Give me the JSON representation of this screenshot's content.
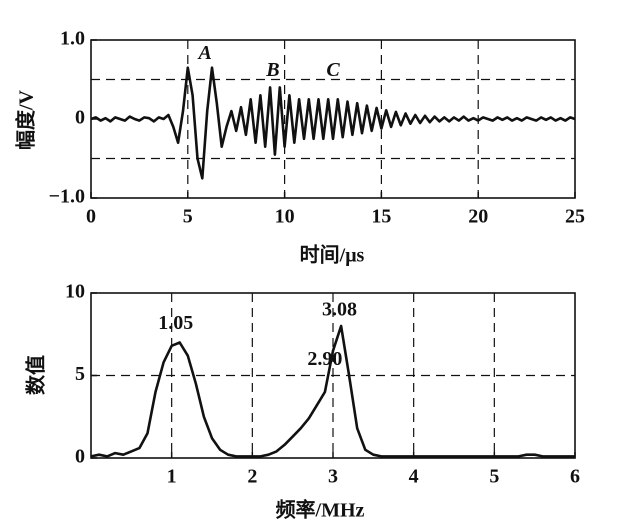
{
  "chart_data": [
    {
      "type": "line",
      "y_label": "幅度/V",
      "x_label": "时间/μs",
      "xlim": [
        0,
        25
      ],
      "xticks": [
        0,
        5,
        10,
        15,
        20,
        25
      ],
      "ylim": [
        -1,
        1
      ],
      "yticks": [
        {
          "value": 1,
          "label": "1.0"
        },
        0,
        {
          "value": -1,
          "label": "−1.0"
        }
      ],
      "grid": true,
      "ygrid": [
        -0.5,
        0.5
      ],
      "color": "#111111",
      "x": [
        0,
        0.25,
        0.5,
        0.75,
        1,
        1.25,
        1.5,
        1.75,
        2,
        2.25,
        2.5,
        2.75,
        3,
        3.25,
        3.5,
        3.75,
        4,
        4.25,
        4.5,
        4.75,
        5,
        5.25,
        5.5,
        5.75,
        6,
        6.25,
        6.5,
        6.75,
        7,
        7.25,
        7.5,
        7.75,
        8,
        8.25,
        8.5,
        8.75,
        9,
        9.25,
        9.5,
        9.75,
        10,
        10.25,
        10.5,
        10.75,
        11,
        11.25,
        11.5,
        11.75,
        12,
        12.25,
        12.5,
        12.75,
        13,
        13.25,
        13.5,
        13.75,
        14,
        14.25,
        14.5,
        14.75,
        15,
        15.25,
        15.5,
        15.75,
        16,
        16.25,
        16.5,
        16.75,
        17,
        17.25,
        17.5,
        17.75,
        18,
        18.25,
        18.5,
        18.75,
        19,
        19.25,
        19.5,
        19.75,
        20,
        20.25,
        20.5,
        20.75,
        21,
        21.25,
        21.5,
        21.75,
        22,
        22.25,
        22.5,
        22.75,
        23,
        23.25,
        23.5,
        23.75,
        24,
        24.25,
        24.5,
        24.75,
        25
      ],
      "values": [
        0,
        0.02,
        -0.02,
        0.01,
        -0.03,
        0.02,
        0,
        -0.02,
        0.03,
        0,
        -0.02,
        0.02,
        0.01,
        -0.03,
        0.02,
        0,
        0.05,
        -0.1,
        -0.3,
        0.1,
        0.65,
        0.3,
        -0.5,
        -0.75,
        0.1,
        0.65,
        0.2,
        -0.35,
        -0.1,
        0.1,
        -0.15,
        0.15,
        -0.2,
        0.25,
        -0.3,
        0.3,
        -0.35,
        0.4,
        -0.45,
        0.4,
        -0.35,
        0.3,
        -0.3,
        0.25,
        -0.25,
        0.25,
        -0.25,
        0.25,
        -0.25,
        0.25,
        -0.25,
        0.25,
        -0.23,
        0.22,
        -0.2,
        0.2,
        -0.18,
        0.17,
        -0.15,
        0.14,
        -0.12,
        0.11,
        -0.1,
        0.09,
        -0.08,
        0.07,
        -0.06,
        0.05,
        -0.05,
        0.04,
        -0.04,
        0.03,
        -0.03,
        0.02,
        -0.03,
        0.02,
        -0.02,
        0.03,
        -0.02,
        0.01,
        -0.02,
        0.02,
        0,
        -0.02,
        0.02,
        -0.01,
        0.02,
        -0.02,
        0.01,
        -0.02,
        0.02,
        0,
        -0.02,
        0.02,
        -0.01,
        0.02,
        -0.02,
        0.01,
        -0.02,
        0.02,
        0
      ],
      "annotations": [
        {
          "text": "A",
          "x": 5.9,
          "y": 0.82
        },
        {
          "text": "B",
          "x": 9.4,
          "y": 0.6
        },
        {
          "text": "C",
          "x": 12.5,
          "y": 0.6
        }
      ]
    },
    {
      "type": "line",
      "y_label": "数值",
      "x_label": "频率/MHz",
      "xlim": [
        0,
        6
      ],
      "xticks": [
        1,
        2,
        3,
        4,
        5,
        6
      ],
      "ylim": [
        0,
        10
      ],
      "yticks": [
        0,
        5,
        10
      ],
      "grid": true,
      "color": "#111111",
      "x": [
        0,
        0.1,
        0.2,
        0.3,
        0.4,
        0.5,
        0.6,
        0.7,
        0.8,
        0.9,
        1,
        1.1,
        1.2,
        1.3,
        1.4,
        1.5,
        1.6,
        1.7,
        1.8,
        1.9,
        2,
        2.1,
        2.2,
        2.3,
        2.4,
        2.5,
        2.6,
        2.7,
        2.8,
        2.9,
        3,
        3.1,
        3.2,
        3.3,
        3.4,
        3.5,
        3.6,
        3.7,
        3.8,
        3.9,
        4,
        4.1,
        4.2,
        4.3,
        4.4,
        4.5,
        4.6,
        4.7,
        4.8,
        4.9,
        5,
        5.1,
        5.2,
        5.3,
        5.4,
        5.5,
        5.6,
        5.7,
        5.8,
        5.9,
        6
      ],
      "values": [
        0.1,
        0.2,
        0.1,
        0.3,
        0.2,
        0.4,
        0.6,
        1.5,
        4,
        5.8,
        6.8,
        7,
        6.2,
        4.5,
        2.5,
        1.2,
        0.5,
        0.2,
        0.1,
        0.1,
        0.1,
        0.1,
        0.2,
        0.4,
        0.8,
        1.3,
        1.8,
        2.4,
        3.2,
        4,
        6.5,
        8,
        5,
        1.8,
        0.5,
        0.2,
        0.1,
        0.1,
        0.1,
        0.1,
        0.1,
        0.1,
        0.1,
        0.1,
        0.1,
        0.1,
        0.1,
        0.1,
        0.1,
        0.1,
        0.1,
        0.1,
        0.1,
        0.1,
        0.2,
        0.2,
        0.1,
        0.1,
        0.1,
        0.1,
        0.1
      ],
      "annotations": [
        {
          "text": "1.05",
          "x": 1.05,
          "y": 8.1
        },
        {
          "text": "3.08",
          "x": 3.08,
          "y": 8.9
        },
        {
          "text": "2.90",
          "x": 2.9,
          "y": 5.9
        }
      ]
    }
  ]
}
